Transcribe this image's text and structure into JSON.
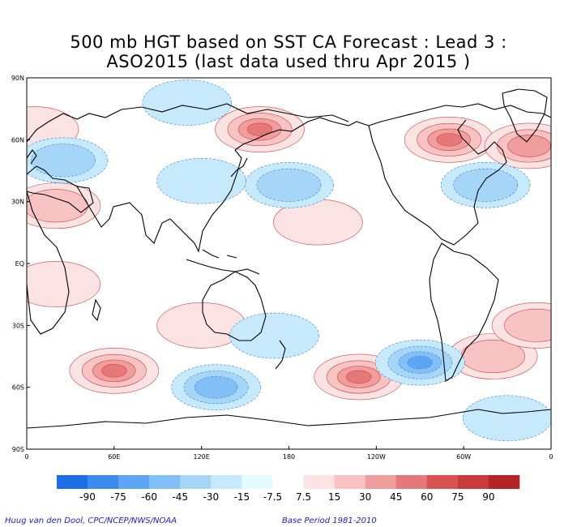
{
  "title": {
    "line1": "500 mb HGT based on SST CA Forecast : Lead 3 :",
    "line2": "ASO2015 (last data used thru Apr 2015 )"
  },
  "axes": {
    "lat_labels": [
      "90N",
      "60N",
      "30N",
      "EQ",
      "30S",
      "60S",
      "90S"
    ],
    "lon_labels": [
      "0",
      "60E",
      "120E",
      "180",
      "120W",
      "60W",
      "0"
    ]
  },
  "colorbar": {
    "labels": [
      "-90",
      "-75",
      "-60",
      "-45",
      "-30",
      "-15",
      "-7.5",
      "7.5",
      "15",
      "30",
      "45",
      "60",
      "75",
      "90"
    ],
    "colors": [
      "#1e6fe6",
      "#3c8cf0",
      "#5ea6f5",
      "#82bff7",
      "#a6d6f7",
      "#c6e9fb",
      "#e6fbfd",
      "#ffffff",
      "#fce3e3",
      "#f8c3c3",
      "#f09d9d",
      "#e57878",
      "#da5353",
      "#c93a3a",
      "#b32525"
    ]
  },
  "map_fields": {
    "positive": [
      {
        "lon": 160,
        "lat": 65,
        "level": 4
      },
      {
        "lon": 290,
        "lat": 60,
        "level": 4
      },
      {
        "lon": 345,
        "lat": 57,
        "level": 3
      },
      {
        "lon": 60,
        "lat": -52,
        "level": 4
      },
      {
        "lon": 228,
        "lat": -55,
        "level": 4
      },
      {
        "lon": 320,
        "lat": -45,
        "level": 2
      },
      {
        "lon": 20,
        "lat": 28,
        "level": 2
      },
      {
        "lon": 200,
        "lat": 20,
        "level": 1
      },
      {
        "lon": 20,
        "lat": -10,
        "level": 1
      },
      {
        "lon": 5,
        "lat": 65,
        "level": 1
      },
      {
        "lon": 120,
        "lat": -30,
        "level": 1
      },
      {
        "lon": 350,
        "lat": -30,
        "level": 2
      }
    ],
    "negative": [
      {
        "lon": 270,
        "lat": -48,
        "level": 4
      },
      {
        "lon": 130,
        "lat": -60,
        "level": 3
      },
      {
        "lon": 180,
        "lat": 38,
        "level": 2
      },
      {
        "lon": 120,
        "lat": 40,
        "level": 1
      },
      {
        "lon": 25,
        "lat": 50,
        "level": 2
      },
      {
        "lon": 315,
        "lat": 38,
        "level": 2
      },
      {
        "lon": 170,
        "lat": -35,
        "level": 1
      },
      {
        "lon": 110,
        "lat": 78,
        "level": 1
      },
      {
        "lon": 330,
        "lat": -75,
        "level": 1
      }
    ]
  },
  "credits": {
    "left": "Huug van den Dool, CPC/NCEP/NWS/NOAA",
    "right": "Base Period 1981-2010"
  }
}
